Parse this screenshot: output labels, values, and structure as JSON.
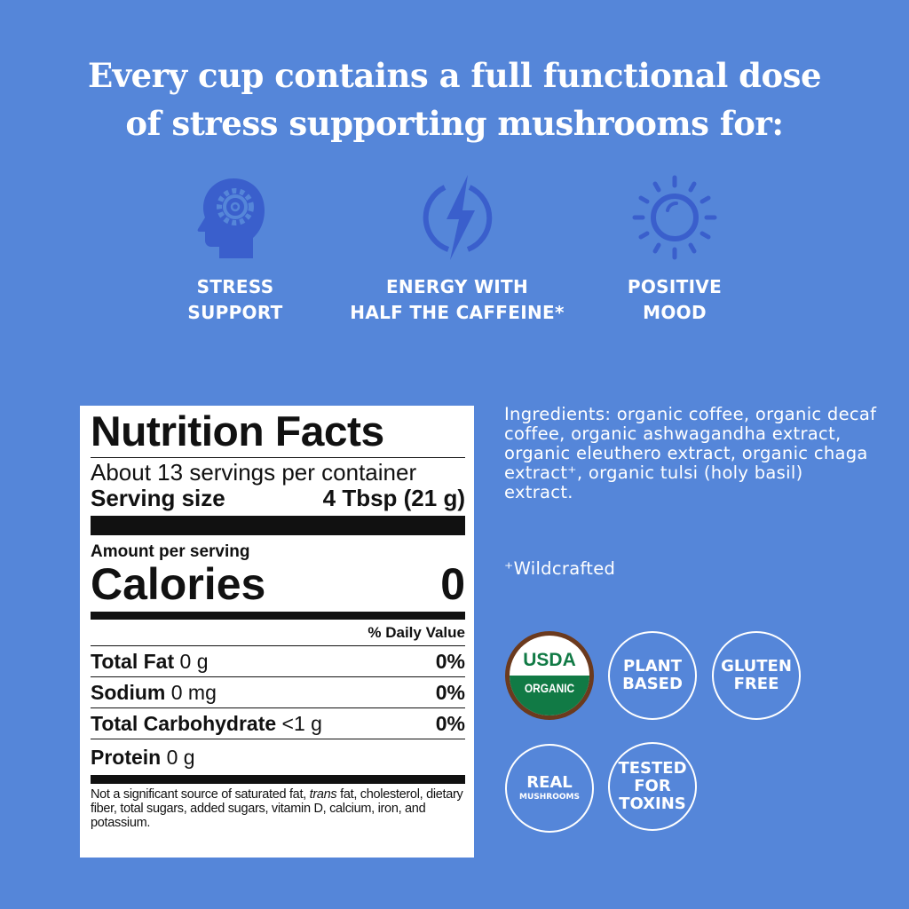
{
  "headline": {
    "line1": "Every cup contains a full functional dose",
    "line2": "of stress supporting mushrooms for:"
  },
  "colors": {
    "background": "#5586d9",
    "icon": "#3a5fcc",
    "usda_green": "#117a45",
    "usda_brown": "#6b3a1e"
  },
  "benefits": [
    {
      "icon": "head-gear-icon",
      "line1": "STRESS",
      "line2": "SUPPORT"
    },
    {
      "icon": "lightning-bolt-icon",
      "line1": "ENERGY WITH",
      "line2": "HALF THE CAFFEINE*"
    },
    {
      "icon": "sun-icon",
      "line1": "POSITIVE",
      "line2": "MOOD"
    }
  ],
  "nutrition": {
    "title": "Nutrition Facts",
    "servings": "About 13 servings per container",
    "serving_size_label": "Serving size",
    "serving_size_value": "4 Tbsp (21 g)",
    "amount_per_serving": "Amount per serving",
    "calories_label": "Calories",
    "calories_value": "0",
    "daily_value_header": "% Daily Value",
    "rows": [
      {
        "name": "Total Fat",
        "amount": "0 g",
        "dv": "0%"
      },
      {
        "name": "Sodium",
        "amount": "0 mg",
        "dv": "0%"
      },
      {
        "name": "Total Carbohydrate",
        "amount": "<1 g",
        "dv": "0%"
      },
      {
        "name": "Protein",
        "amount": "0 g",
        "dv": ""
      }
    ],
    "footnote_a": "Not a significant source of saturated fat, ",
    "footnote_trans": "trans",
    "footnote_b": " fat, cholesterol, dietary fiber, total sugars, added sugars, vitamin D, calcium, iron, and potassium."
  },
  "ingredients": "Ingredients: organic coffee, organic decaf coffee, organic ashwagandha extract, organic eleuthero extract, organic chaga extract⁺, organic tulsi (holy basil) extract.",
  "wildcrafted": "⁺Wildcrafted",
  "badges": {
    "usda": {
      "top": "USDA",
      "bottom": "ORGANIC"
    },
    "plant": {
      "l1": "PLANT",
      "l2": "BASED"
    },
    "gluten": {
      "l1": "GLUTEN",
      "l2": "FREE"
    },
    "real": {
      "l1": "REAL",
      "l2": "MUSHROOMS"
    },
    "tested": {
      "l1": "TESTED",
      "l2": "FOR",
      "l3": "TOXINS"
    }
  }
}
